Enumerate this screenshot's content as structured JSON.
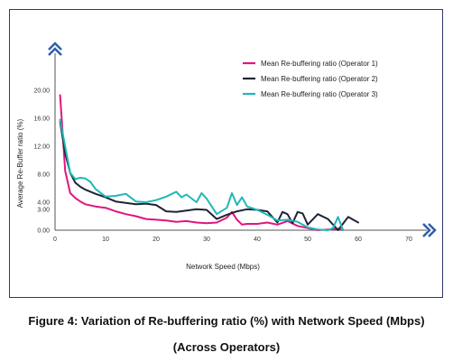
{
  "figure": {
    "caption_line1": "Figure 4: Variation of Re-buffering ratio (%) with Network Speed (Mbps)",
    "caption_line2": "(Across Operators)"
  },
  "chart_data": {
    "type": "line",
    "title": "",
    "xlabel": "Network Speed (Mbps)",
    "ylabel": "Average Re-Buffer ratio (%)",
    "xlim": [
      0,
      70
    ],
    "ylim": [
      0,
      20
    ],
    "x_ticks": [
      0,
      10,
      20,
      30,
      40,
      50,
      60,
      70
    ],
    "y_ticks": [
      0,
      3.0,
      4.0,
      8.0,
      12.0,
      16.0,
      20.0
    ],
    "y_tick_labels": [
      "0.00",
      "3.00",
      "4.00",
      "8.00",
      "12.00",
      "16.00",
      "20.00"
    ],
    "grid": false,
    "legend_position": "top-right",
    "series": [
      {
        "name": "Mean Re-buffering ratio (Operator 1)",
        "color": "#e0157e",
        "x": [
          1,
          1.5,
          2,
          3,
          4,
          5,
          6,
          8,
          10,
          12,
          14,
          16,
          18,
          20,
          22,
          24,
          26,
          28,
          30,
          32,
          34,
          35,
          36,
          37,
          38,
          40,
          42,
          44,
          46,
          48,
          50,
          52,
          54,
          56,
          57
        ],
        "y": [
          19.3,
          14,
          8.5,
          5.3,
          4.6,
          4.1,
          3.7,
          3.4,
          3.2,
          2.7,
          2.3,
          2.0,
          1.6,
          1.5,
          1.4,
          1.2,
          1.3,
          1.1,
          1.0,
          1.1,
          1.8,
          2.6,
          1.5,
          0.8,
          0.9,
          0.9,
          1.1,
          0.8,
          1.3,
          0.6,
          0.3,
          0.0,
          0.1,
          0.2,
          0.0
        ]
      },
      {
        "name": "Mean Re-buffering ratio (Operator 2)",
        "color": "#1f2337",
        "x": [
          1,
          2,
          3,
          4,
          5,
          6,
          8,
          10,
          12,
          14,
          16,
          18,
          20,
          22,
          24,
          26,
          28,
          30,
          32,
          34,
          36,
          38,
          40,
          42,
          44,
          45,
          46,
          47,
          48,
          49,
          50,
          52,
          54,
          56,
          58,
          60
        ],
        "y": [
          15.5,
          11,
          8.2,
          6.8,
          6.2,
          5.8,
          5.2,
          4.7,
          4.1,
          3.9,
          3.7,
          3.8,
          3.6,
          2.7,
          2.6,
          2.8,
          3.0,
          2.9,
          1.6,
          2.2,
          2.7,
          3.0,
          2.9,
          2.7,
          1.1,
          2.6,
          2.3,
          1.0,
          2.6,
          2.4,
          0.8,
          2.3,
          1.6,
          0.0,
          1.9,
          1.1
        ]
      },
      {
        "name": "Mean Re-buffering ratio (Operator 3)",
        "color": "#1fb8b8",
        "x": [
          1,
          2,
          3,
          4,
          5,
          6,
          7,
          8,
          10,
          12,
          14,
          16,
          18,
          20,
          22,
          24,
          25,
          26,
          28,
          29,
          30,
          32,
          34,
          35,
          36,
          37,
          38,
          40,
          42,
          44,
          46,
          48,
          50,
          52,
          54,
          55,
          56,
          57
        ],
        "y": [
          15.8,
          12,
          8.2,
          7.3,
          7.5,
          7.4,
          6.9,
          5.9,
          4.8,
          4.9,
          5.2,
          4.1,
          4.0,
          4.3,
          4.8,
          5.5,
          4.7,
          5.1,
          4.0,
          5.3,
          4.5,
          2.3,
          3.2,
          5.3,
          3.6,
          4.7,
          3.4,
          2.9,
          2.2,
          1.4,
          1.5,
          1.2,
          0.4,
          0.1,
          0.0,
          0.3,
          1.9,
          0.0
        ]
      }
    ]
  }
}
